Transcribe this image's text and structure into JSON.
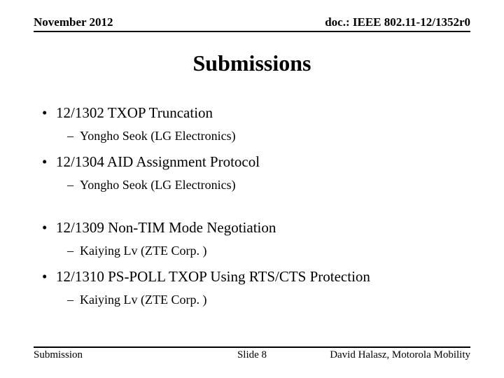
{
  "header": {
    "left": "November 2012",
    "right": "doc.: IEEE 802.11-12/1352r0"
  },
  "title": "Submissions",
  "items": [
    {
      "label": "12/1302 TXOP Truncation",
      "author": "Yongho Seok (LG Electronics)"
    },
    {
      "label": "12/1304 AID Assignment Protocol",
      "author": "Yongho Seok (LG Electronics)"
    },
    {
      "label": "12/1309 Non-TIM Mode Negotiation",
      "author": "Kaiying Lv (ZTE Corp. )"
    },
    {
      "label": "12/1310 PS-POLL TXOP Using RTS/CTS Protection",
      "author": "Kaiying Lv (ZTE Corp. )"
    }
  ],
  "footer": {
    "left": "Submission",
    "center": "Slide 8",
    "right": "David Halasz, Motorola Mobility"
  },
  "colors": {
    "background": "#ffffff",
    "text": "#000000",
    "rule": "#000000"
  },
  "typography": {
    "body_font": "Times New Roman",
    "header_fontsize": 17,
    "title_fontsize": 32,
    "level1_fontsize": 21,
    "level2_fontsize": 18,
    "footer_fontsize": 15
  }
}
